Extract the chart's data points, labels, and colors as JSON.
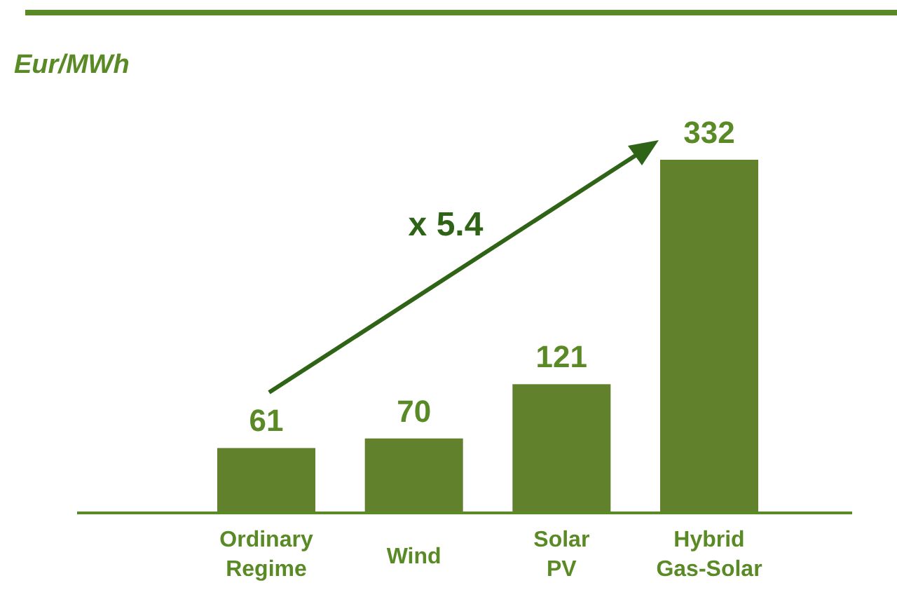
{
  "chart_data": {
    "type": "bar",
    "ylabel": "Eur/MWh",
    "categories": [
      "Ordinary Regime",
      "Wind",
      "Solar PV",
      "Hybrid Gas-Solar"
    ],
    "values": [
      61,
      70,
      121,
      332
    ],
    "color": "#61812c",
    "data_labels": true,
    "annotations": [
      "x 5.4"
    ]
  }
}
